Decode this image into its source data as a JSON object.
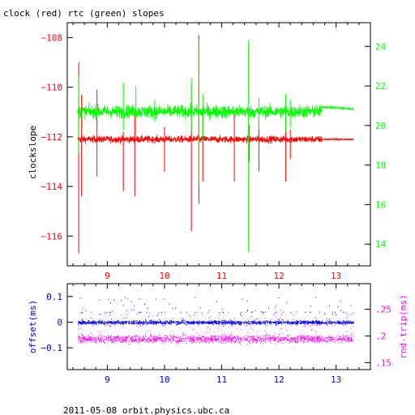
{
  "title": "clock (red) rtc (green) slopes",
  "footer": "2011-05-08 orbit.physics.ubc.ca",
  "colors": {
    "red": "#ff0000",
    "green": "#00ff00",
    "blue": "#0000ff",
    "magenta": "#ff00ff",
    "axis": "#000000"
  },
  "chart_data": [
    {
      "type": "line",
      "title": "clock (red) rtc (green) slopes",
      "xlabel": "",
      "ylabel": "clockslope",
      "y2label": "",
      "xlim": [
        8.3,
        13.6
      ],
      "ylim": [
        -117.2,
        -107.4
      ],
      "y2lim": [
        12.9,
        25.2
      ],
      "x_ticks": [
        9,
        10,
        11,
        12,
        13
      ],
      "y_ticks": [
        -116,
        -114,
        -112,
        -110,
        -108
      ],
      "y2_ticks": [
        14,
        16,
        18,
        20,
        22,
        24
      ],
      "series": [
        {
          "name": "clock",
          "color": "#ff0000",
          "axis": "left",
          "baseline": -112.1,
          "x_range": [
            8.48,
            13.3
          ],
          "spikes": [
            {
              "x": 8.5,
              "min": -116.7,
              "max": -109.0
            },
            {
              "x": 8.55,
              "min": -114.4,
              "max": -110.3
            },
            {
              "x": 8.82,
              "min": -113.6,
              "max": -110.1
            },
            {
              "x": 9.28,
              "min": -114.2,
              "max": -111.8
            },
            {
              "x": 9.48,
              "min": -114.4,
              "max": -111.0
            },
            {
              "x": 10.0,
              "min": -113.4,
              "max": -111.6
            },
            {
              "x": 10.47,
              "min": -115.8,
              "max": -109.9
            },
            {
              "x": 10.6,
              "min": -114.7,
              "max": -107.9
            },
            {
              "x": 10.67,
              "min": -113.8,
              "max": -110.7
            },
            {
              "x": 11.22,
              "min": -113.8,
              "max": -111.0
            },
            {
              "x": 11.48,
              "min": -113.0,
              "max": -111.5
            },
            {
              "x": 11.65,
              "min": -113.4,
              "max": -111.3
            },
            {
              "x": 12.12,
              "min": -113.8,
              "max": -110.9
            },
            {
              "x": 12.2,
              "min": -112.9,
              "max": -111.7
            }
          ]
        },
        {
          "name": "rtc",
          "color": "#00ff00",
          "axis": "right",
          "baseline": 20.7,
          "x_range": [
            8.48,
            13.3
          ],
          "spikes": [
            {
              "x": 8.5,
              "min": 18.6,
              "max": 22.5
            },
            {
              "x": 8.56,
              "min": 19.9,
              "max": 21.5
            },
            {
              "x": 9.28,
              "min": 19.8,
              "max": 22.2
            },
            {
              "x": 9.5,
              "min": 19.5,
              "max": 22.0
            },
            {
              "x": 9.83,
              "min": 20.2,
              "max": 21.3
            },
            {
              "x": 10.47,
              "min": 19.7,
              "max": 22.4
            },
            {
              "x": 10.6,
              "min": 17.1,
              "max": 24.3
            },
            {
              "x": 10.67,
              "min": 19.2,
              "max": 21.6
            },
            {
              "x": 11.47,
              "min": 13.6,
              "max": 24.3
            },
            {
              "x": 11.65,
              "min": 19.8,
              "max": 21.4
            },
            {
              "x": 12.12,
              "min": 19.7,
              "max": 21.6
            },
            {
              "x": 12.2,
              "min": 19.9,
              "max": 21.3
            }
          ]
        }
      ]
    },
    {
      "type": "scatter",
      "xlabel": "",
      "ylabel": "offset(ms)",
      "y2label": "rnd-trip(ms)",
      "xlim": [
        8.3,
        13.6
      ],
      "ylim": [
        -0.185,
        0.15
      ],
      "y2lim": [
        0.137,
        0.298
      ],
      "x_ticks": [
        9,
        10,
        11,
        12,
        13
      ],
      "y_ticks": [
        -0.1,
        0,
        0.1
      ],
      "y2_ticks": [
        0.15,
        0.2,
        0.25
      ],
      "series": [
        {
          "name": "offset",
          "color": "#0000ff",
          "axis": "left",
          "center": 0.0,
          "spread": [
            -0.025,
            0.04
          ],
          "x_range": [
            8.48,
            13.3
          ]
        },
        {
          "name": "rnd-trip",
          "color": "#ff00ff",
          "axis": "right",
          "center": 0.195,
          "spread": [
            0.158,
            0.22
          ],
          "x_range": [
            8.48,
            13.3
          ]
        }
      ]
    }
  ]
}
